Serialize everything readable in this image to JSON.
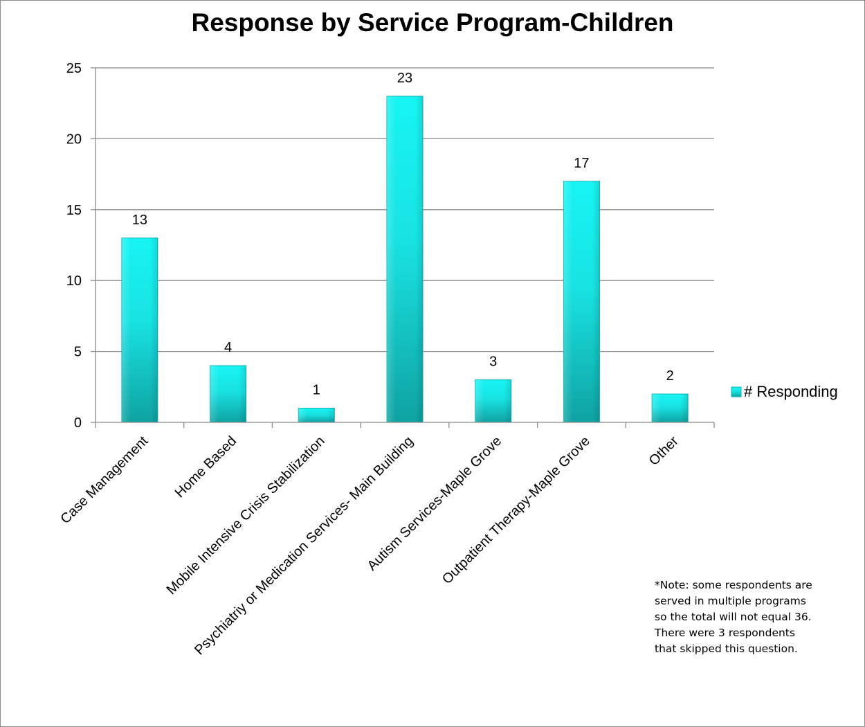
{
  "chart_data": {
    "type": "bar",
    "title": "Response by Service Program-Children",
    "categories": [
      "Case Management",
      "Home Based",
      "Mobile Intensive Crisis Stabilization",
      "Psychiatriy or Medication Services- Main Building",
      "Autism Services-Maple Grove",
      "Outpatient Therapy-Maple Grove",
      "Other"
    ],
    "series": [
      {
        "name": "# Responding",
        "values": [
          13,
          4,
          1,
          23,
          3,
          17,
          2
        ]
      }
    ],
    "ylim": [
      0,
      25
    ],
    "yticks": [
      0,
      5,
      10,
      15,
      20,
      25
    ],
    "xlabel": "",
    "ylabel": "",
    "grid": true,
    "legend_position": "right",
    "data_labels": true,
    "bar_color": "#19e0e0",
    "note_lines": [
      "*Note: some respondents are",
      "served in multiple programs",
      "so the total will not equal 36.",
      "There were 3 respondents",
      "that skipped this question."
    ]
  }
}
